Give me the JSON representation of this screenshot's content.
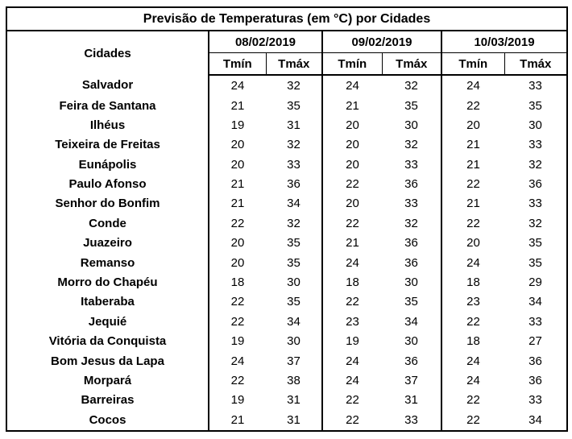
{
  "colors": {
    "border": "#000000",
    "background": "#ffffff",
    "text": "#000000"
  },
  "chart_data": {
    "type": "table",
    "title": "Previsão de Temperaturas (em °C) por Cidades",
    "city_column_header": "Cidades",
    "date_headers": [
      "08/02/2019",
      "09/02/2019",
      "10/03/2019"
    ],
    "sub_headers": [
      "Tmín",
      "Tmáx"
    ],
    "rows": [
      {
        "city": "Salvador",
        "temps": [
          24,
          32,
          24,
          32,
          24,
          33
        ]
      },
      {
        "city": "Feira de Santana",
        "temps": [
          21,
          35,
          21,
          35,
          22,
          35
        ]
      },
      {
        "city": "Ilhéus",
        "temps": [
          19,
          31,
          20,
          30,
          20,
          30
        ]
      },
      {
        "city": "Teixeira de Freitas",
        "temps": [
          20,
          32,
          20,
          32,
          21,
          33
        ]
      },
      {
        "city": "Eunápolis",
        "temps": [
          20,
          33,
          20,
          33,
          21,
          32
        ]
      },
      {
        "city": "Paulo Afonso",
        "temps": [
          21,
          36,
          22,
          36,
          22,
          36
        ]
      },
      {
        "city": "Senhor do Bonfim",
        "temps": [
          21,
          34,
          20,
          33,
          21,
          33
        ]
      },
      {
        "city": "Conde",
        "temps": [
          22,
          32,
          22,
          32,
          22,
          32
        ]
      },
      {
        "city": "Juazeiro",
        "temps": [
          20,
          35,
          21,
          36,
          20,
          35
        ]
      },
      {
        "city": "Remanso",
        "temps": [
          20,
          35,
          24,
          36,
          24,
          35
        ]
      },
      {
        "city": "Morro do Chapéu",
        "temps": [
          18,
          30,
          18,
          30,
          18,
          29
        ]
      },
      {
        "city": "Itaberaba",
        "temps": [
          22,
          35,
          22,
          35,
          23,
          34
        ]
      },
      {
        "city": "Jequié",
        "temps": [
          22,
          34,
          23,
          34,
          22,
          33
        ]
      },
      {
        "city": "Vitória da Conquista",
        "temps": [
          19,
          30,
          19,
          30,
          18,
          27
        ]
      },
      {
        "city": "Bom Jesus da Lapa",
        "temps": [
          24,
          37,
          24,
          36,
          24,
          36
        ]
      },
      {
        "city": "Morpará",
        "temps": [
          22,
          38,
          24,
          37,
          24,
          36
        ]
      },
      {
        "city": "Barreiras",
        "temps": [
          19,
          31,
          22,
          31,
          22,
          33
        ]
      },
      {
        "city": "Cocos",
        "temps": [
          21,
          31,
          22,
          33,
          22,
          34
        ]
      }
    ]
  }
}
